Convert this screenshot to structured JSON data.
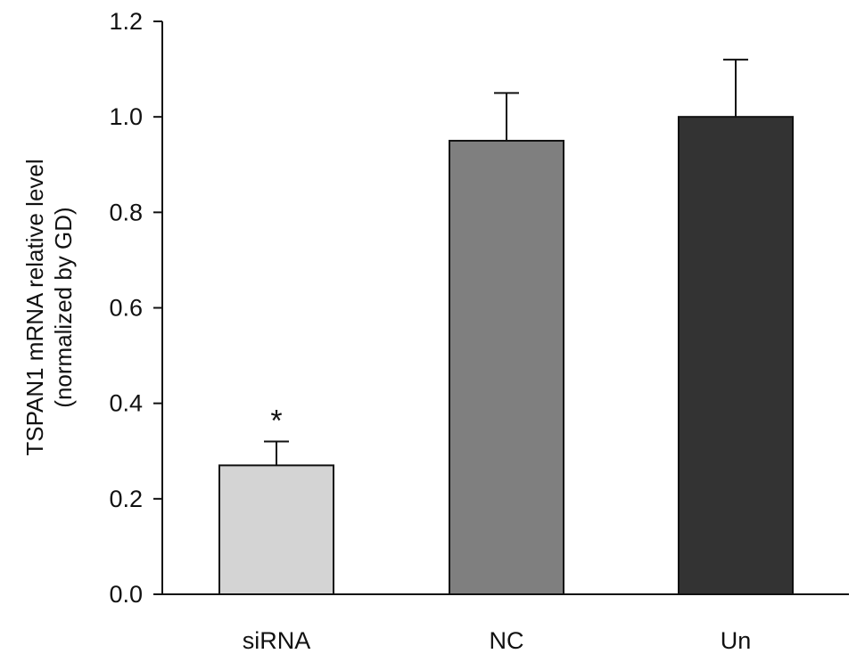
{
  "chart_data": {
    "type": "bar",
    "title": "",
    "xlabel": "",
    "ylabel_lines": [
      "TSPAN1 mRNA relative level",
      "(normalized by GD)"
    ],
    "categories": [
      "siRNA",
      "NC",
      "Un"
    ],
    "values": [
      0.27,
      0.95,
      1.0
    ],
    "error_upper": [
      0.32,
      1.05,
      1.12
    ],
    "bar_colors": [
      "#d4d4d4",
      "#7f7f7f",
      "#333333"
    ],
    "annotations": [
      "*",
      "",
      ""
    ],
    "ylim": [
      0,
      1.2
    ],
    "yticks": [
      "0.0",
      "0.2",
      "0.4",
      "0.6",
      "0.8",
      "1.0",
      "1.2"
    ],
    "grid": false,
    "legend": "none"
  }
}
